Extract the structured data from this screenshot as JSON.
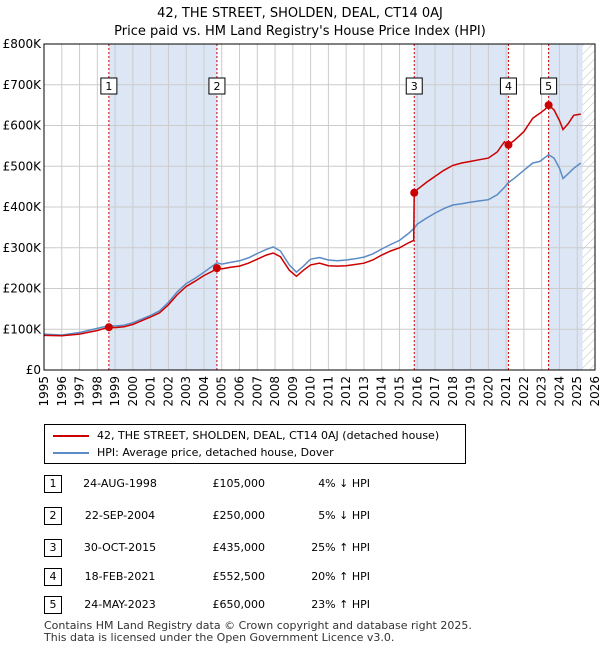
{
  "title_line1": "42, THE STREET, SHOLDEN, DEAL, CT14 0AJ",
  "title_line2": "Price paid vs. HM Land Registry's House Price Index (HPI)",
  "colors": {
    "property": "#cc0000",
    "hpi": "#5b8bc4",
    "shade": "#dce6f5",
    "grid": "#cccccc"
  },
  "chart_data": {
    "type": "line",
    "xlim": [
      1995,
      2026
    ],
    "ylim": [
      0,
      800000
    ],
    "x_ticks": [
      1995,
      1996,
      1997,
      1998,
      1999,
      2000,
      2001,
      2002,
      2003,
      2004,
      2005,
      2006,
      2007,
      2008,
      2009,
      2010,
      2011,
      2012,
      2013,
      2014,
      2015,
      2016,
      2017,
      2018,
      2019,
      2020,
      2021,
      2022,
      2023,
      2024,
      2025,
      2026
    ],
    "y_ticks": [
      0,
      100000,
      200000,
      300000,
      400000,
      500000,
      600000,
      700000,
      800000
    ],
    "y_tick_labels": [
      "£0",
      "£100K",
      "£200K",
      "£300K",
      "£400K",
      "£500K",
      "£600K",
      "£700K",
      "£800K"
    ],
    "series": [
      {
        "name": "42, THE STREET, SHOLDEN, DEAL, CT14 0AJ (detached house)",
        "color": "#cc0000",
        "points": [
          [
            1995.0,
            85000
          ],
          [
            1996.0,
            84000
          ],
          [
            1997.0,
            88000
          ],
          [
            1998.0,
            97000
          ],
          [
            1998.65,
            105000
          ],
          [
            1999.0,
            104000
          ],
          [
            1999.5,
            106000
          ],
          [
            2000.0,
            112000
          ],
          [
            2001.0,
            130000
          ],
          [
            2001.5,
            140000
          ],
          [
            2002.0,
            160000
          ],
          [
            2002.5,
            185000
          ],
          [
            2003.0,
            205000
          ],
          [
            2003.5,
            218000
          ],
          [
            2004.0,
            232000
          ],
          [
            2004.5,
            243000
          ],
          [
            2004.73,
            250000
          ],
          [
            2005.0,
            248000
          ],
          [
            2005.5,
            252000
          ],
          [
            2006.0,
            255000
          ],
          [
            2006.5,
            262000
          ],
          [
            2007.0,
            272000
          ],
          [
            2007.5,
            282000
          ],
          [
            2007.9,
            287000
          ],
          [
            2008.3,
            278000
          ],
          [
            2008.8,
            245000
          ],
          [
            2009.2,
            230000
          ],
          [
            2009.6,
            245000
          ],
          [
            2010.0,
            258000
          ],
          [
            2010.5,
            262000
          ],
          [
            2011.0,
            256000
          ],
          [
            2011.5,
            255000
          ],
          [
            2012.0,
            256000
          ],
          [
            2012.5,
            259000
          ],
          [
            2013.0,
            262000
          ],
          [
            2013.5,
            270000
          ],
          [
            2014.0,
            282000
          ],
          [
            2014.5,
            292000
          ],
          [
            2015.0,
            300000
          ],
          [
            2015.5,
            312000
          ],
          [
            2015.8,
            318000
          ],
          [
            2015.83,
            435000
          ],
          [
            2016.0,
            443000
          ],
          [
            2016.5,
            460000
          ],
          [
            2017.0,
            475000
          ],
          [
            2017.5,
            490000
          ],
          [
            2018.0,
            502000
          ],
          [
            2018.5,
            508000
          ],
          [
            2019.0,
            512000
          ],
          [
            2019.5,
            516000
          ],
          [
            2020.0,
            520000
          ],
          [
            2020.5,
            535000
          ],
          [
            2020.9,
            560000
          ],
          [
            2021.13,
            552500
          ],
          [
            2021.5,
            565000
          ],
          [
            2022.0,
            585000
          ],
          [
            2022.5,
            618000
          ],
          [
            2022.9,
            630000
          ],
          [
            2023.2,
            640000
          ],
          [
            2023.39,
            650000
          ],
          [
            2023.7,
            638000
          ],
          [
            2024.0,
            612000
          ],
          [
            2024.2,
            590000
          ],
          [
            2024.5,
            605000
          ],
          [
            2024.8,
            625000
          ],
          [
            2025.2,
            628000
          ]
        ]
      },
      {
        "name": "HPI: Average price, detached house, Dover",
        "color": "#5b8bc4",
        "points": [
          [
            1995.0,
            88000
          ],
          [
            1996.0,
            86000
          ],
          [
            1997.0,
            92000
          ],
          [
            1998.0,
            102000
          ],
          [
            1998.65,
            109000
          ],
          [
            1999.0,
            108000
          ],
          [
            1999.5,
            110000
          ],
          [
            2000.0,
            116000
          ],
          [
            2001.0,
            134000
          ],
          [
            2001.5,
            145000
          ],
          [
            2002.0,
            166000
          ],
          [
            2002.5,
            192000
          ],
          [
            2003.0,
            212000
          ],
          [
            2003.5,
            225000
          ],
          [
            2004.0,
            240000
          ],
          [
            2004.5,
            256000
          ],
          [
            2004.73,
            263000
          ],
          [
            2005.0,
            260000
          ],
          [
            2005.5,
            264000
          ],
          [
            2006.0,
            268000
          ],
          [
            2006.5,
            275000
          ],
          [
            2007.0,
            286000
          ],
          [
            2007.5,
            296000
          ],
          [
            2007.9,
            302000
          ],
          [
            2008.3,
            292000
          ],
          [
            2008.8,
            258000
          ],
          [
            2009.2,
            240000
          ],
          [
            2009.6,
            255000
          ],
          [
            2010.0,
            272000
          ],
          [
            2010.5,
            276000
          ],
          [
            2011.0,
            270000
          ],
          [
            2011.5,
            268000
          ],
          [
            2012.0,
            270000
          ],
          [
            2012.5,
            273000
          ],
          [
            2013.0,
            277000
          ],
          [
            2013.5,
            285000
          ],
          [
            2014.0,
            297000
          ],
          [
            2014.5,
            308000
          ],
          [
            2015.0,
            318000
          ],
          [
            2015.5,
            335000
          ],
          [
            2015.83,
            348000
          ],
          [
            2016.0,
            358000
          ],
          [
            2016.5,
            372000
          ],
          [
            2017.0,
            385000
          ],
          [
            2017.5,
            396000
          ],
          [
            2018.0,
            405000
          ],
          [
            2018.5,
            408000
          ],
          [
            2019.0,
            412000
          ],
          [
            2019.5,
            415000
          ],
          [
            2020.0,
            418000
          ],
          [
            2020.5,
            430000
          ],
          [
            2020.9,
            448000
          ],
          [
            2021.13,
            460000
          ],
          [
            2021.5,
            472000
          ],
          [
            2022.0,
            490000
          ],
          [
            2022.5,
            508000
          ],
          [
            2022.9,
            512000
          ],
          [
            2023.2,
            522000
          ],
          [
            2023.39,
            528000
          ],
          [
            2023.7,
            520000
          ],
          [
            2024.0,
            495000
          ],
          [
            2024.2,
            470000
          ],
          [
            2024.5,
            482000
          ],
          [
            2024.8,
            495000
          ],
          [
            2025.2,
            508000
          ]
        ]
      }
    ],
    "sale_markers": [
      {
        "label": "1",
        "x": 1998.65,
        "y": 105000
      },
      {
        "label": "2",
        "x": 2004.73,
        "y": 250000
      },
      {
        "label": "3",
        "x": 2015.83,
        "y": 435000
      },
      {
        "label": "4",
        "x": 2021.13,
        "y": 552500
      },
      {
        "label": "5",
        "x": 2023.39,
        "y": 650000
      }
    ],
    "shaded_ranges": [
      [
        1998.65,
        2004.73
      ],
      [
        2015.83,
        2021.13
      ],
      [
        2023.39,
        2025.3
      ]
    ],
    "hatched_after": 2025.3
  },
  "legend": {
    "property_label": "42, THE STREET, SHOLDEN, DEAL, CT14 0AJ (detached house)",
    "hpi_label": "HPI: Average price, detached house, Dover"
  },
  "transactions": [
    {
      "num": "1",
      "date": "24-AUG-1998",
      "price": "£105,000",
      "hpi": "4% ↓ HPI"
    },
    {
      "num": "2",
      "date": "22-SEP-2004",
      "price": "£250,000",
      "hpi": "5% ↓ HPI"
    },
    {
      "num": "3",
      "date": "30-OCT-2015",
      "price": "£435,000",
      "hpi": "25% ↑ HPI"
    },
    {
      "num": "4",
      "date": "18-FEB-2021",
      "price": "£552,500",
      "hpi": "20% ↑ HPI"
    },
    {
      "num": "5",
      "date": "24-MAY-2023",
      "price": "£650,000",
      "hpi": "23% ↑ HPI"
    }
  ],
  "footer_line1": "Contains HM Land Registry data © Crown copyright and database right 2025.",
  "footer_line2": "This data is licensed under the Open Government Licence v3.0."
}
